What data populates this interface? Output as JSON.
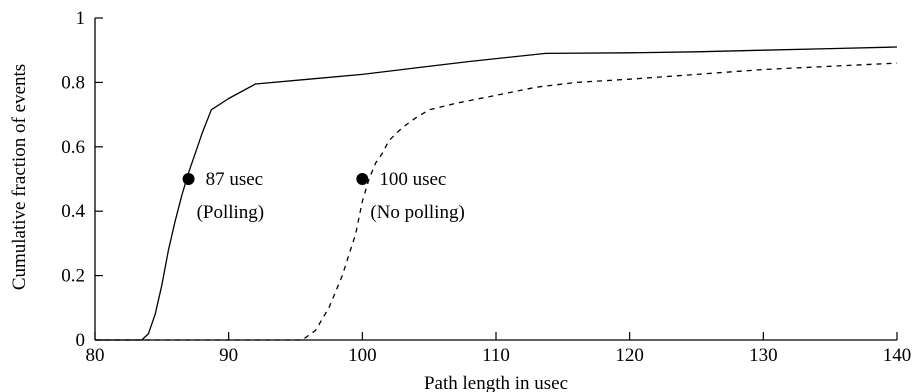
{
  "chart_data": {
    "type": "line",
    "title": "",
    "xlabel": "Path length in usec",
    "ylabel": "Cumulative fraction of events",
    "xlim": [
      80,
      140
    ],
    "ylim": [
      0,
      1
    ],
    "xticks": [
      80,
      90,
      100,
      110,
      120,
      130,
      140
    ],
    "yticks": [
      0,
      0.2,
      0.4,
      0.6,
      0.8,
      1
    ],
    "xtick_labels": [
      "80",
      "90",
      "100",
      "110",
      "120",
      "130",
      "140"
    ],
    "ytick_labels": [
      "0",
      "0.2",
      "0.4",
      "0.6",
      "0.8",
      "1"
    ],
    "grid": false,
    "legend": "none",
    "series": [
      {
        "style": "solid",
        "color": "#000000",
        "x": [
          80,
          83.5,
          84.0,
          84.5,
          85.0,
          85.5,
          86.0,
          86.5,
          87.0,
          87.5,
          88.0,
          88.7,
          90.0,
          92.0,
          96.0,
          100.0,
          104.0,
          108.0,
          113.7,
          120.0,
          125.0,
          130.0,
          135.0,
          140.0
        ],
        "y": [
          0,
          0.0,
          0.02,
          0.08,
          0.17,
          0.28,
          0.37,
          0.45,
          0.52,
          0.58,
          0.64,
          0.715,
          0.75,
          0.795,
          0.81,
          0.825,
          0.845,
          0.865,
          0.89,
          0.892,
          0.895,
          0.9,
          0.905,
          0.91
        ]
      },
      {
        "style": "dashed",
        "color": "#000000",
        "x": [
          80,
          95.5,
          96.5,
          97.5,
          98.5,
          99.5,
          100.0,
          100.5,
          101.0,
          101.5,
          102.0,
          103.0,
          104.0,
          105.0,
          107.0,
          110.0,
          113.0,
          116.0,
          120.0,
          125.0,
          130.0,
          135.0,
          140.0
        ],
        "y": [
          0,
          0.0,
          0.03,
          0.1,
          0.2,
          0.33,
          0.43,
          0.5,
          0.55,
          0.58,
          0.62,
          0.66,
          0.69,
          0.715,
          0.735,
          0.76,
          0.785,
          0.8,
          0.81,
          0.825,
          0.84,
          0.85,
          0.86
        ]
      }
    ],
    "annotations": [
      {
        "x": 87,
        "y": 0.5,
        "line1": "87 usec",
        "line2": "(Polling)"
      },
      {
        "x": 100,
        "y": 0.5,
        "line1": "100 usec",
        "line2": "(No polling)"
      }
    ]
  }
}
